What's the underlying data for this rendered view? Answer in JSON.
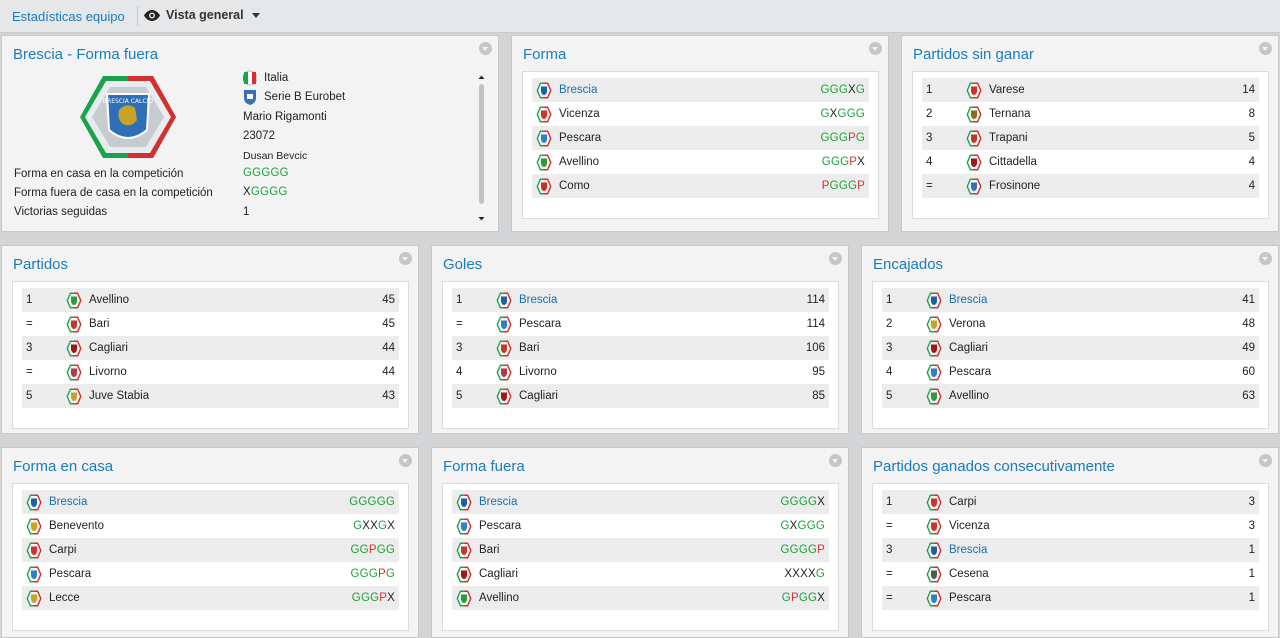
{
  "topbar": {
    "breadcrumb": "Estadísticas equipo",
    "view_label": "Vista general"
  },
  "colors": {
    "accent": "#1a7bbd",
    "win": "#1aa33a",
    "loss": "#d63232",
    "draw": "#222222"
  },
  "panels": {
    "brescia": {
      "title": "Brescia - Forma fuera",
      "country": "Italia",
      "league": "Serie B Eurobet",
      "stadium": "Mario Rigamonti",
      "capacity": "23072",
      "manager": "Dusan Bevcic",
      "home_form_label": "Forma en casa en la competición",
      "home_form": "GGGGG",
      "away_form_label": "Forma fuera de casa en la competición",
      "away_form": "XGGGG",
      "streak_label": "Victorias seguidas",
      "streak": "1"
    },
    "forma": {
      "title": "Forma",
      "rows": [
        {
          "team": "Brescia",
          "form": "GGGXG",
          "hl": true,
          "crest": "brescia-crest-icon",
          "color": "#1f5fa6"
        },
        {
          "team": "Vicenza",
          "form": "GXGGG",
          "crest": "vicenza-crest-icon",
          "color": "#d33030"
        },
        {
          "team": "Pescara",
          "form": "GGGPG",
          "crest": "pescara-crest-icon",
          "color": "#2f7fc4"
        },
        {
          "team": "Avellino",
          "form": "GGGPX",
          "crest": "avellino-crest-icon",
          "color": "#2e9b3e"
        },
        {
          "team": "Como",
          "form": "PGGGP",
          "crest": "como-crest-icon",
          "color": "#c9302c"
        }
      ]
    },
    "sin_ganar": {
      "title": "Partidos sin ganar",
      "rows": [
        {
          "rank": "1",
          "team": "Varese",
          "value": "14",
          "crest": "varese-crest-icon",
          "color": "#d33030"
        },
        {
          "rank": "2",
          "team": "Ternana",
          "value": "8",
          "crest": "ternana-crest-icon",
          "color": "#8a6b1e"
        },
        {
          "rank": "3",
          "team": "Trapani",
          "value": "5",
          "crest": "trapani-crest-icon",
          "color": "#c0392b"
        },
        {
          "rank": "4",
          "team": "Cittadella",
          "value": "4",
          "crest": "cittadella-crest-icon",
          "color": "#a4161a"
        },
        {
          "rank": "=",
          "team": "Frosinone",
          "value": "4",
          "crest": "frosinone-crest-icon",
          "color": "#3a6fb5"
        }
      ]
    },
    "partidos": {
      "title": "Partidos",
      "rows": [
        {
          "rank": "1",
          "team": "Avellino",
          "value": "45",
          "crest": "avellino-crest-icon",
          "color": "#2e9b3e"
        },
        {
          "rank": "=",
          "team": "Bari",
          "value": "45",
          "crest": "bari-crest-icon",
          "color": "#c0392b"
        },
        {
          "rank": "3",
          "team": "Cagliari",
          "value": "44",
          "crest": "cagliari-crest-icon",
          "color": "#a4161a"
        },
        {
          "rank": "=",
          "team": "Livorno",
          "value": "44",
          "crest": "livorno-crest-icon",
          "color": "#b03a48"
        },
        {
          "rank": "5",
          "team": "Juve Stabia",
          "value": "43",
          "crest": "juve-stabia-crest-icon",
          "color": "#c9a227"
        }
      ]
    },
    "goles": {
      "title": "Goles",
      "rows": [
        {
          "rank": "1",
          "team": "Brescia",
          "value": "114",
          "hl": true,
          "crest": "brescia-crest-icon",
          "color": "#1f5fa6"
        },
        {
          "rank": "=",
          "team": "Pescara",
          "value": "114",
          "crest": "pescara-crest-icon",
          "color": "#2f7fc4"
        },
        {
          "rank": "3",
          "team": "Bari",
          "value": "106",
          "crest": "bari-crest-icon",
          "color": "#c0392b"
        },
        {
          "rank": "4",
          "team": "Livorno",
          "value": "95",
          "crest": "livorno-crest-icon",
          "color": "#b03a48"
        },
        {
          "rank": "5",
          "team": "Cagliari",
          "value": "85",
          "crest": "cagliari-crest-icon",
          "color": "#a4161a"
        }
      ]
    },
    "encajados": {
      "title": "Encajados",
      "rows": [
        {
          "rank": "1",
          "team": "Brescia",
          "value": "41",
          "hl": true,
          "crest": "brescia-crest-icon",
          "color": "#1f5fa6"
        },
        {
          "rank": "2",
          "team": "Verona",
          "value": "48",
          "crest": "verona-crest-icon",
          "color": "#c9a227"
        },
        {
          "rank": "3",
          "team": "Cagliari",
          "value": "49",
          "crest": "cagliari-crest-icon",
          "color": "#a4161a"
        },
        {
          "rank": "4",
          "team": "Pescara",
          "value": "60",
          "crest": "pescara-crest-icon",
          "color": "#2f7fc4"
        },
        {
          "rank": "5",
          "team": "Avellino",
          "value": "63",
          "crest": "avellino-crest-icon",
          "color": "#2e9b3e"
        }
      ]
    },
    "forma_casa": {
      "title": "Forma en casa",
      "rows": [
        {
          "team": "Brescia",
          "form": "GGGGG",
          "hl": true,
          "crest": "brescia-crest-icon",
          "color": "#1f5fa6"
        },
        {
          "team": "Benevento",
          "form": "GXXGX",
          "crest": "benevento-crest-icon",
          "color": "#d4a017"
        },
        {
          "team": "Carpi",
          "form": "GGPGG",
          "crest": "carpi-crest-icon",
          "color": "#d33030"
        },
        {
          "team": "Pescara",
          "form": "GGGPG",
          "crest": "pescara-crest-icon",
          "color": "#2f7fc4"
        },
        {
          "team": "Lecce",
          "form": "GGGPX",
          "crest": "lecce-crest-icon",
          "color": "#c9a227"
        }
      ]
    },
    "forma_fuera": {
      "title": "Forma fuera",
      "rows": [
        {
          "team": "Brescia",
          "form": "GGGGX",
          "hl": true,
          "crest": "brescia-crest-icon",
          "color": "#1f5fa6"
        },
        {
          "team": "Pescara",
          "form": "GXGGG",
          "crest": "pescara-crest-icon",
          "color": "#2f7fc4"
        },
        {
          "team": "Bari",
          "form": "GGGGP",
          "crest": "bari-crest-icon",
          "color": "#c0392b"
        },
        {
          "team": "Cagliari",
          "form": "XXXXG",
          "crest": "cagliari-crest-icon",
          "color": "#a4161a"
        },
        {
          "team": "Avellino",
          "form": "GPGGX",
          "crest": "avellino-crest-icon",
          "color": "#2e9b3e"
        }
      ]
    },
    "consecutivos": {
      "title": "Partidos ganados consecutivamente",
      "rows": [
        {
          "rank": "1",
          "team": "Carpi",
          "value": "3",
          "crest": "carpi-crest-icon",
          "color": "#d33030"
        },
        {
          "rank": "=",
          "team": "Vicenza",
          "value": "3",
          "crest": "vicenza-crest-icon",
          "color": "#d33030"
        },
        {
          "rank": "3",
          "team": "Brescia",
          "value": "1",
          "hl": true,
          "crest": "brescia-crest-icon",
          "color": "#1f5fa6"
        },
        {
          "rank": "=",
          "team": "Cesena",
          "value": "1",
          "crest": "cesena-crest-icon",
          "color": "#555555"
        },
        {
          "rank": "=",
          "team": "Pescara",
          "value": "1",
          "crest": "pescara-crest-icon",
          "color": "#2f7fc4"
        }
      ]
    }
  }
}
